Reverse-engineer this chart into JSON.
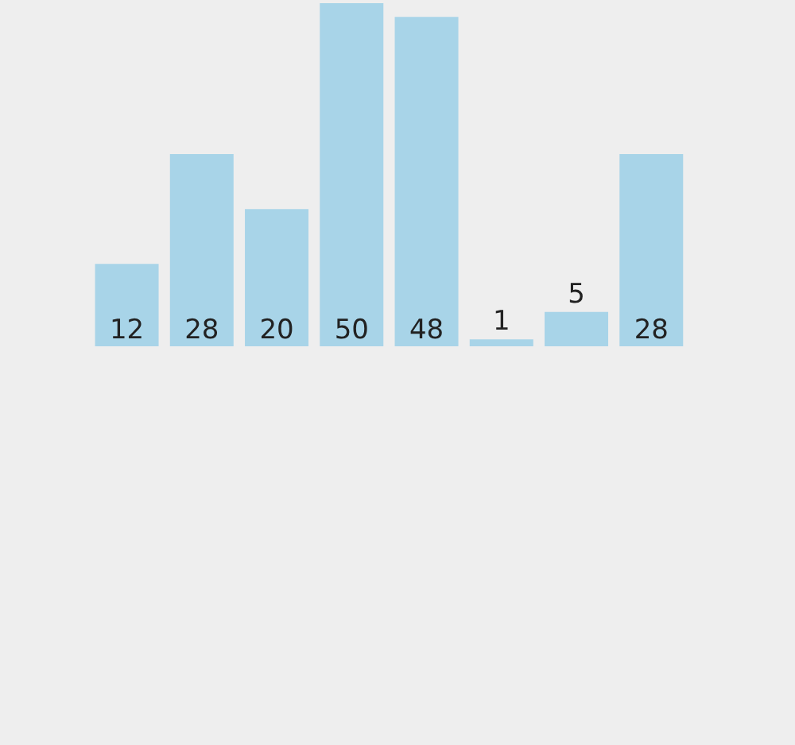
{
  "chart_data": {
    "type": "bar",
    "categories": [
      null,
      null,
      null,
      null,
      null,
      null,
      null,
      null
    ],
    "values": [
      12,
      28,
      20,
      50,
      48,
      1,
      5,
      28
    ],
    "color": "#a8d4e8",
    "ylim": [
      0,
      50
    ],
    "data_labels": true,
    "tick_labels": false,
    "grid": false,
    "legend": false
  }
}
